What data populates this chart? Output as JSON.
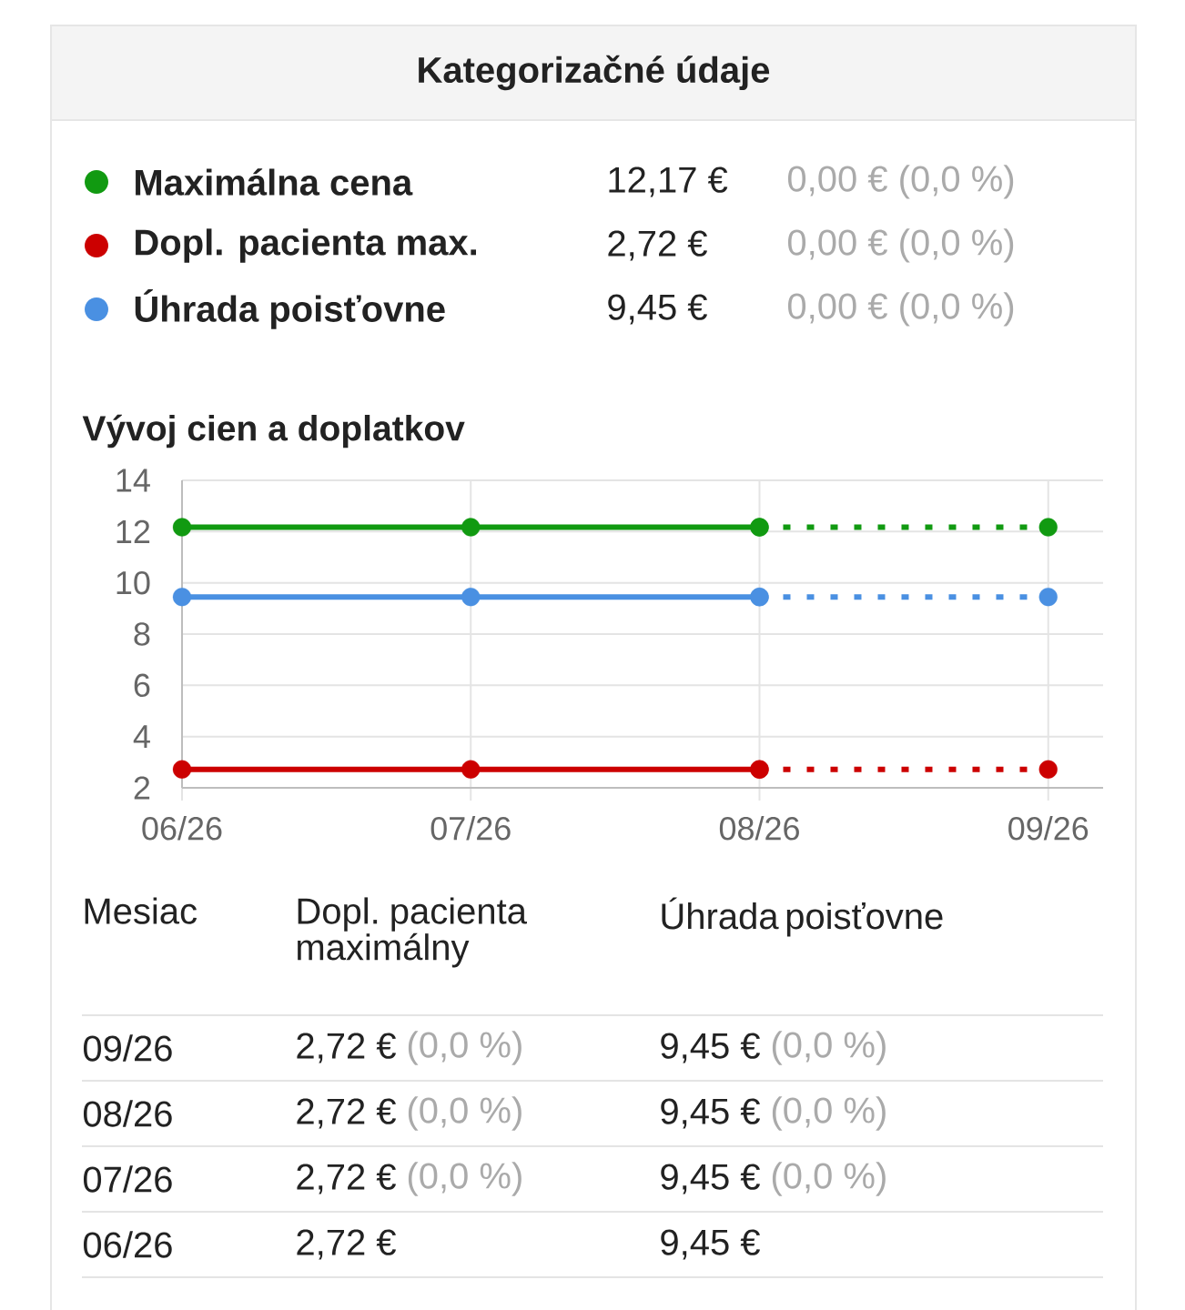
{
  "chart_data": {
    "type": "line",
    "title": "Kategorizačné údaje",
    "subtitle": "Vývoj cien a doplatkov",
    "categories": [
      "06/26",
      "07/26",
      "08/26",
      "09/26"
    ],
    "series": [
      {
        "name": "Maximálna cena",
        "color": "#119a11",
        "values": [
          12.17,
          12.17,
          12.17,
          null
        ]
      },
      {
        "color": "#119a11",
        "line_style": "dotted",
        "values": [
          null,
          null,
          12.17,
          12.17
        ]
      },
      {
        "name": "Dopl. pacienta max.",
        "color": "#cc0000",
        "values": [
          2.72,
          2.72,
          2.72,
          null
        ]
      },
      {
        "color": "#cc0000",
        "line_style": "dotted",
        "values": [
          null,
          null,
          2.72,
          2.72
        ]
      },
      {
        "name": "Úhrada poisťovne",
        "color": "#4a90e2",
        "values": [
          9.45,
          9.45,
          9.45,
          null
        ]
      },
      {
        "color": "#4a90e2",
        "line_style": "dotted",
        "values": [
          null,
          null,
          9.45,
          9.45
        ]
      }
    ],
    "ylim": [
      2,
      14
    ],
    "yticks": [
      2,
      4,
      6,
      8,
      10,
      12,
      14
    ],
    "grid": true,
    "legend": "top",
    "marker": "circle",
    "line_style": "solid",
    "annotations": [
      "12,17 €",
      "0,00 € (0,0 %)",
      "2,72 €",
      "0,00 € (0,0 %)",
      "9,45 €",
      "0,00 € (0,0 %)",
      "Mesiac",
      "Dopl. pacienta maximálny",
      "Úhrada poisťovne",
      "2,72 €",
      "9,45 €",
      "2,72 €",
      "9,45 €",
      "2,72 €",
      "9,45 €",
      "2,72 €",
      "9,45 €",
      "(0,0 %)",
      "(0,0 %)",
      "(0,0 %)",
      "(0,0 %)",
      "(0,0 %)",
      "(0,0 %)"
    ]
  }
}
